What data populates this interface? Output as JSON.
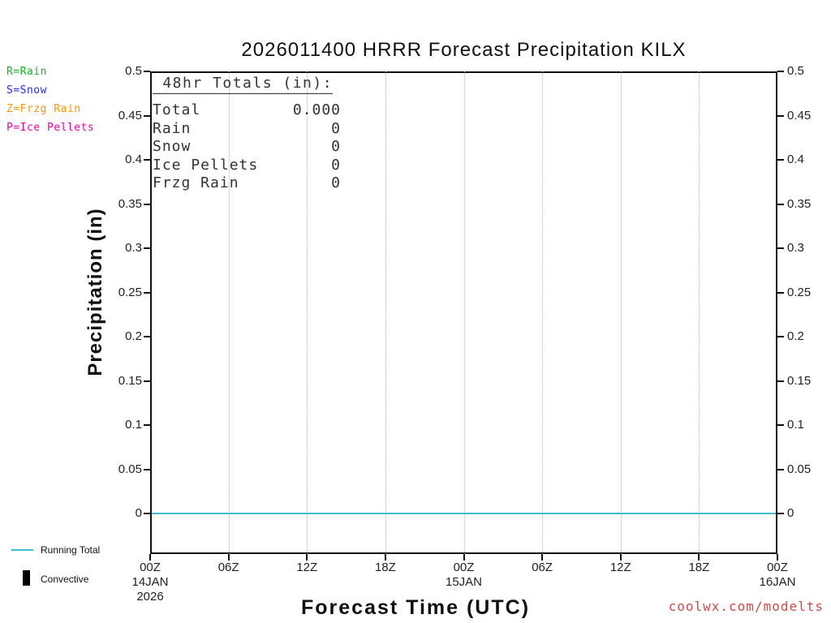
{
  "watermark": {
    "text": "coolwx.com/modelts",
    "color": "#d04a4a"
  },
  "legend_top": [
    {
      "label": "R=Rain",
      "color": "#17b32a"
    },
    {
      "label": "S=Snow",
      "color": "#2a2aee"
    },
    {
      "label": "Z=Frzg Rain",
      "color": "#ff9500"
    },
    {
      "label": "P=Ice Pellets",
      "color": "#ee00aa"
    }
  ],
  "legend_bottom": [
    {
      "label": "Running Total",
      "swatch": "line",
      "color": "#3fbcd4"
    },
    {
      "label": "Convective",
      "swatch": "bar",
      "color": "#000000"
    }
  ],
  "totals_box": {
    "heading": " 48hr Totals (in):",
    "rows": [
      {
        "label": "Total",
        "value": "0.000"
      },
      {
        "label": "Rain",
        "value": "0"
      },
      {
        "label": "Snow",
        "value": "0"
      },
      {
        "label": "Ice Pellets",
        "value": "0"
      },
      {
        "label": "Frzg Rain",
        "value": "0"
      }
    ]
  },
  "chart_data": {
    "type": "line",
    "title": "2026011400 HRRR Forecast Precipitation KILX",
    "xlabel": "Forecast Time (UTC)",
    "ylabel": "Precipitation (in)",
    "ylim": [
      0,
      0.5
    ],
    "ytick_step": 0.05,
    "yticks": [
      "0.5",
      "0.45",
      "0.4",
      "0.35",
      "0.3",
      "0.25",
      "0.2",
      "0.15",
      "0.1",
      "0.05",
      "0"
    ],
    "xticks": [
      "00Z",
      "06Z",
      "12Z",
      "18Z",
      "00Z",
      "06Z",
      "12Z",
      "18Z",
      "00Z"
    ],
    "x_hours": [
      0,
      6,
      12,
      18,
      24,
      30,
      36,
      42,
      48
    ],
    "xdates": [
      {
        "index": 0,
        "lines": [
          "14JAN",
          "2026"
        ]
      },
      {
        "index": 4,
        "lines": [
          "15JAN"
        ]
      },
      {
        "index": 8,
        "lines": [
          "16JAN"
        ]
      }
    ],
    "grid": "vertical-dotted",
    "legend_position": "outside-left",
    "series": [
      {
        "name": "Running Total",
        "type": "line",
        "color": "#3fbcd4",
        "values": [
          0,
          0,
          0,
          0,
          0,
          0,
          0,
          0,
          0
        ]
      },
      {
        "name": "Convective",
        "type": "bar",
        "color": "#000000",
        "values": [
          0,
          0,
          0,
          0,
          0,
          0,
          0,
          0,
          0
        ]
      }
    ]
  }
}
